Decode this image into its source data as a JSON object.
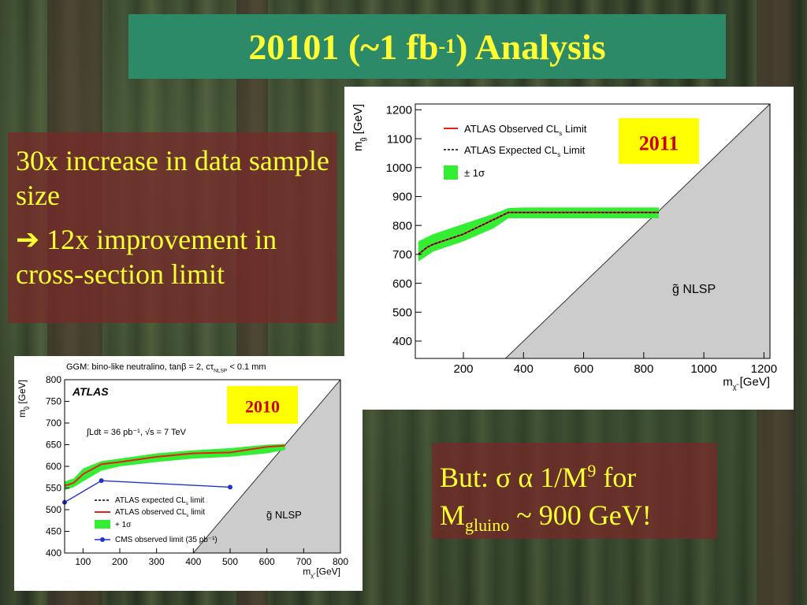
{
  "title": {
    "main": "20101 (~1 fb",
    "sup": "-1",
    "tail": ") Analysis"
  },
  "left_text": {
    "line1": "30x increase in data sample size",
    "arrow": "➔",
    "line2": "12x improvement in cross-section limit"
  },
  "right_text": {
    "line1_pre": "But: ",
    "sigma": "σ",
    "alpha": "α",
    "line1_post": " 1/M",
    "line1_sup": "9",
    "line1_end": " for",
    "line2_pre": "M",
    "line2_sub": "gluino",
    "line2_post": " ~ 900 GeV!"
  },
  "colors": {
    "accent_yellow": "#ffff33",
    "title_bg": "#2c8a68",
    "band_green": "#33ee33",
    "observed_red": "#e8201a",
    "cms_blue": "#2233cc",
    "excluded_gray": "#cccccc"
  },
  "chart_data": [
    {
      "type": "line",
      "badge": "2011",
      "xlabel": "m",
      "xlabel_sub": "χ̃",
      "xlabel_unit": " [GeV]",
      "ylabel": "m",
      "ylabel_sub": "g̃",
      "ylabel_unit": " [GeV]",
      "xlim": [
        40,
        1220
      ],
      "ylim": [
        340,
        1220
      ],
      "x_ticks": [
        200,
        400,
        600,
        800,
        1000,
        1200
      ],
      "y_ticks": [
        400,
        500,
        600,
        700,
        800,
        900,
        1000,
        1100,
        1200
      ],
      "region_label": "g̃ NLSP",
      "legend": [
        {
          "name": "ATLAS Observed CL",
          "sub": "s",
          "tail": " Limit"
        },
        {
          "name": "ATLAS Expected CL",
          "sub": "s",
          "tail": " Limit"
        },
        {
          "name": "± 1σ"
        }
      ],
      "band": {
        "x": [
          50,
          100,
          200,
          300,
          350,
          400,
          600,
          850
        ],
        "upper": [
          745,
          770,
          805,
          840,
          860,
          862,
          862,
          862
        ],
        "lower": [
          675,
          710,
          745,
          790,
          825,
          825,
          825,
          825
        ]
      },
      "series": [
        {
          "name": "ATLAS Observed CL_s Limit",
          "x": [
            50,
            80,
            100,
            200,
            300,
            350,
            400,
            600,
            850
          ],
          "y": [
            700,
            725,
            735,
            770,
            820,
            845,
            845,
            845,
            845
          ]
        },
        {
          "name": "ATLAS Expected CL_s Limit",
          "x": [
            50,
            80,
            100,
            200,
            300,
            350,
            400,
            600,
            850
          ],
          "y": [
            700,
            725,
            735,
            770,
            820,
            845,
            845,
            845,
            845
          ]
        }
      ]
    },
    {
      "type": "line",
      "badge": "2010",
      "title": "GGM: bino-like neutralino, tanβ = 2, cτ",
      "title_sub": "NLSP",
      "title_tail": " < 0.1 mm",
      "brand": "ATLAS",
      "lumi": "∫Ldt =  36 pb⁻¹, √s = 7 TeV",
      "xlabel": "m",
      "xlabel_sub": "χ̃",
      "xlabel_unit": " [GeV]",
      "ylabel": "m",
      "ylabel_sub": "g̃",
      "ylabel_unit": " [GeV]",
      "xlim": [
        50,
        800
      ],
      "ylim": [
        400,
        800
      ],
      "x_ticks": [
        100,
        200,
        300,
        400,
        500,
        600,
        700,
        800
      ],
      "y_ticks": [
        400,
        450,
        500,
        550,
        600,
        650,
        700,
        750,
        800
      ],
      "region_label": "g̃ NLSP",
      "legend": [
        {
          "name": "ATLAS expected CL",
          "sub": "s",
          "tail": " limit"
        },
        {
          "name": "ATLAS observed CL",
          "sub": "s",
          "tail": " limit"
        },
        {
          "name": "+ 1σ"
        },
        {
          "name": "CMS observed limit (35 pb⁻¹)"
        }
      ],
      "band": {
        "x": [
          50,
          75,
          100,
          150,
          200,
          300,
          400,
          500,
          600,
          650
        ],
        "upper": [
          565,
          572,
          595,
          612,
          618,
          630,
          637,
          642,
          650,
          652
        ],
        "lower": [
          545,
          552,
          565,
          590,
          600,
          610,
          618,
          622,
          630,
          638
        ]
      },
      "series": [
        {
          "name": "ATLAS expected CL_s limit",
          "x": [
            50,
            75,
            100,
            150,
            200,
            300,
            400,
            500,
            600,
            650
          ],
          "y": [
            555,
            562,
            582,
            605,
            610,
            622,
            630,
            632,
            645,
            648
          ]
        },
        {
          "name": "ATLAS observed CL_s limit",
          "x": [
            50,
            75,
            100,
            150,
            200,
            300,
            400,
            500,
            600,
            650
          ],
          "y": [
            555,
            562,
            582,
            605,
            610,
            622,
            630,
            632,
            645,
            648
          ]
        },
        {
          "name": "CMS observed limit (35 pb⁻¹)",
          "x": [
            50,
            150,
            500
          ],
          "y": [
            517,
            567,
            552
          ]
        }
      ]
    }
  ]
}
